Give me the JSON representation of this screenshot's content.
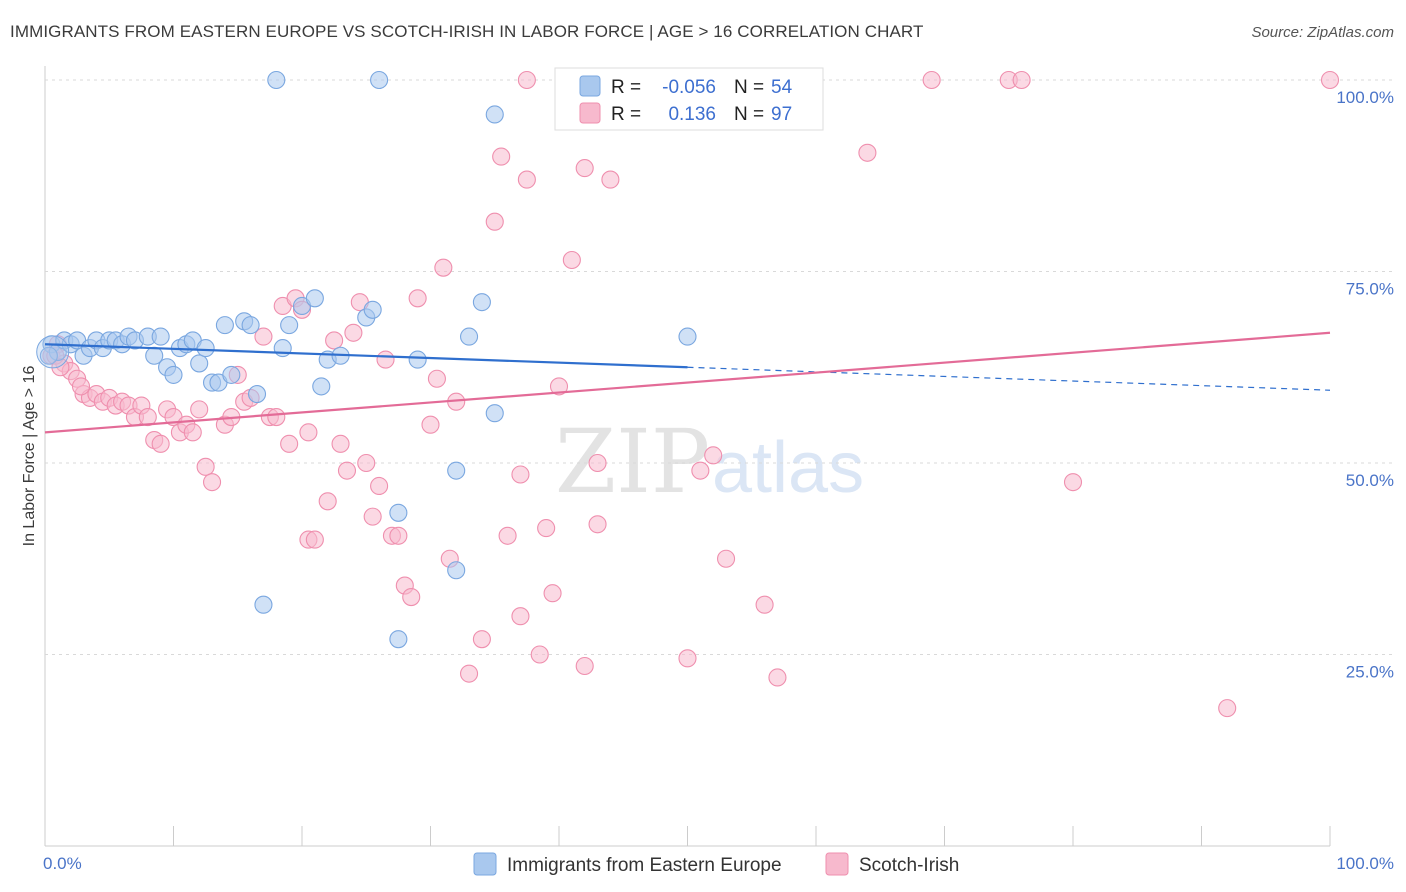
{
  "title": "IMMIGRANTS FROM EASTERN EUROPE VS SCOTCH-IRISH IN LABOR FORCE | AGE > 16 CORRELATION CHART",
  "source": "Source: ZipAtlas.com",
  "watermark": {
    "zip": "ZIP",
    "atlas": "atlas"
  },
  "legend_stats": {
    "r_label": "R =",
    "n_label": "N =",
    "rows": [
      {
        "r": "-0.056",
        "n": "54",
        "color": "#a9c8ee"
      },
      {
        "r": "0.136",
        "n": "97",
        "color": "#f7b9cd"
      }
    ]
  },
  "chart_data": {
    "type": "scatter",
    "title": "IMMIGRANTS FROM EASTERN EUROPE VS SCOTCH-IRISH IN LABOR FORCE | AGE > 16 CORRELATION CHART",
    "xlabel": "",
    "ylabel": "In Labor Force | Age > 16",
    "xlim": [
      0,
      100
    ],
    "ylim": [
      0,
      105
    ],
    "x_tick_labels": [
      "0.0%",
      "100.0%"
    ],
    "y_ticks": [
      25,
      50,
      75,
      100
    ],
    "y_tick_labels": [
      "25.0%",
      "50.0%",
      "75.0%",
      "100.0%"
    ],
    "grid": "horizontal dashed",
    "legend_placement": "top-center",
    "series": [
      {
        "name": "Immigrants from Eastern Europe",
        "color": "#7aa7e0",
        "fill": "#a9c8ee",
        "line_color": "#2f6fce",
        "trend": {
          "x0": 0,
          "y0": 65.5,
          "x1": 50,
          "y1": 62.5,
          "dash_to_x": 100,
          "dash_to_y": 59.5
        },
        "points": [
          [
            0.5,
            65.5
          ],
          [
            1,
            64.5
          ],
          [
            1.5,
            66
          ],
          [
            2,
            65.5
          ],
          [
            2.5,
            66
          ],
          [
            3,
            64
          ],
          [
            3.5,
            65
          ],
          [
            4,
            66
          ],
          [
            4.5,
            65
          ],
          [
            5,
            66
          ],
          [
            5.5,
            66
          ],
          [
            6,
            65.5
          ],
          [
            6.5,
            66.5
          ],
          [
            7,
            66
          ],
          [
            8,
            66.5
          ],
          [
            8.5,
            64
          ],
          [
            9,
            66.5
          ],
          [
            9.5,
            62.5
          ],
          [
            10,
            61.5
          ],
          [
            10.5,
            65
          ],
          [
            11,
            65.5
          ],
          [
            11.5,
            66
          ],
          [
            12,
            63
          ],
          [
            12.5,
            65
          ],
          [
            13,
            60.5
          ],
          [
            13.5,
            60.5
          ],
          [
            14,
            68
          ],
          [
            14.5,
            61.5
          ],
          [
            15.5,
            68.5
          ],
          [
            16,
            68
          ],
          [
            16.5,
            59
          ],
          [
            17,
            31.5
          ],
          [
            18,
            100
          ],
          [
            18.5,
            65
          ],
          [
            19,
            68
          ],
          [
            20,
            70.5
          ],
          [
            21,
            71.5
          ],
          [
            21.5,
            60
          ],
          [
            22,
            63.5
          ],
          [
            23,
            64
          ],
          [
            25,
            69
          ],
          [
            25.5,
            70
          ],
          [
            26,
            100
          ],
          [
            27.5,
            43.5
          ],
          [
            27.5,
            27
          ],
          [
            29,
            63.5
          ],
          [
            32,
            49
          ],
          [
            32,
            36
          ],
          [
            33,
            66.5
          ],
          [
            34,
            71
          ],
          [
            35,
            56.5
          ],
          [
            35,
            95.5
          ],
          [
            50,
            66.5
          ],
          [
            0.3,
            64
          ]
        ]
      },
      {
        "name": "Scotch-Irish",
        "color": "#ef8fae",
        "fill": "#f7b9cd",
        "line_color": "#e36b97",
        "trend": {
          "x0": 0,
          "y0": 54,
          "x1": 100,
          "y1": 67
        },
        "points": [
          [
            0.5,
            64
          ],
          [
            1,
            65.5
          ],
          [
            1.5,
            63
          ],
          [
            2,
            62
          ],
          [
            2.5,
            61
          ],
          [
            3,
            59
          ],
          [
            3.5,
            58.5
          ],
          [
            4,
            59
          ],
          [
            4.5,
            58
          ],
          [
            5,
            58.5
          ],
          [
            5.5,
            57.5
          ],
          [
            6,
            58
          ],
          [
            6.5,
            57.5
          ],
          [
            7,
            56
          ],
          [
            7.5,
            57.5
          ],
          [
            8,
            56
          ],
          [
            8.5,
            53
          ],
          [
            9,
            52.5
          ],
          [
            9.5,
            57
          ],
          [
            10,
            56
          ],
          [
            10.5,
            54
          ],
          [
            11,
            55
          ],
          [
            11.5,
            54
          ],
          [
            12,
            57
          ],
          [
            12.5,
            49.5
          ],
          [
            13,
            47.5
          ],
          [
            14,
            55
          ],
          [
            14.5,
            56
          ],
          [
            15,
            61.5
          ],
          [
            15.5,
            58
          ],
          [
            16,
            58.5
          ],
          [
            17,
            66.5
          ],
          [
            17.5,
            56
          ],
          [
            18,
            56
          ],
          [
            18.5,
            70.5
          ],
          [
            19,
            52.5
          ],
          [
            19.5,
            71.5
          ],
          [
            20,
            70
          ],
          [
            20.5,
            54
          ],
          [
            20.5,
            40
          ],
          [
            21,
            40
          ],
          [
            22,
            45
          ],
          [
            22.5,
            66
          ],
          [
            23,
            52.5
          ],
          [
            23.5,
            49
          ],
          [
            24,
            67
          ],
          [
            24.5,
            71
          ],
          [
            25,
            50
          ],
          [
            25.5,
            43
          ],
          [
            26,
            47
          ],
          [
            26.5,
            63.5
          ],
          [
            27,
            40.5
          ],
          [
            27.5,
            40.5
          ],
          [
            28,
            34
          ],
          [
            28.5,
            32.5
          ],
          [
            29,
            71.5
          ],
          [
            30,
            55
          ],
          [
            30.5,
            61
          ],
          [
            31,
            75.5
          ],
          [
            31.5,
            37.5
          ],
          [
            32,
            58
          ],
          [
            33,
            22.5
          ],
          [
            34,
            27
          ],
          [
            35,
            81.5
          ],
          [
            35.5,
            90
          ],
          [
            36,
            40.5
          ],
          [
            37,
            48.5
          ],
          [
            37,
            30
          ],
          [
            37.5,
            87
          ],
          [
            37.5,
            100
          ],
          [
            38.5,
            25
          ],
          [
            39,
            41.5
          ],
          [
            39.5,
            33
          ],
          [
            40,
            60
          ],
          [
            41,
            100
          ],
          [
            41,
            76.5
          ],
          [
            42,
            23.5
          ],
          [
            42,
            88.5
          ],
          [
            43,
            50
          ],
          [
            43,
            42
          ],
          [
            44,
            87
          ],
          [
            50,
            24.5
          ],
          [
            51,
            49
          ],
          [
            52,
            51
          ],
          [
            53,
            37.5
          ],
          [
            56,
            31.5
          ],
          [
            57,
            22
          ],
          [
            64,
            90.5
          ],
          [
            69,
            100
          ],
          [
            75,
            100
          ],
          [
            76,
            100
          ],
          [
            80,
            47.5
          ],
          [
            92,
            18
          ],
          [
            100,
            100
          ],
          [
            0.8,
            64
          ],
          [
            1.2,
            62.5
          ],
          [
            2.8,
            60
          ]
        ]
      }
    ]
  }
}
